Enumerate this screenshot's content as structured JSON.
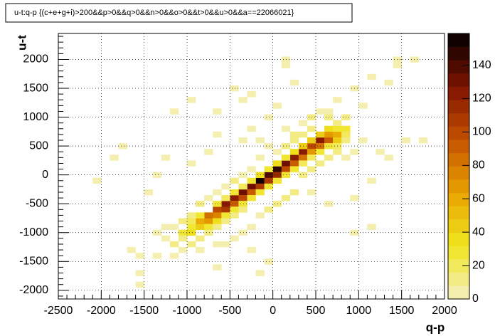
{
  "chart_data": {
    "type": "heatmap",
    "title": "u-t:q-p {(c+e+g+i)>200&&p>0&&q>0&&n>0&&o>0&&t>0&&u>0&&a==22066021}",
    "xlabel": "q-p",
    "ylabel": "u-t",
    "xlim": [
      -2500,
      2000
    ],
    "ylim": [
      -2150,
      2450
    ],
    "zlim": [
      0,
      159
    ],
    "bin_width": [
      100,
      100
    ],
    "xticks": [
      -2500,
      -2000,
      -1500,
      -1000,
      -500,
      0,
      500,
      1000,
      1500,
      2000
    ],
    "yticks": [
      -2000,
      -1500,
      -1000,
      -500,
      0,
      500,
      1000,
      1500,
      2000
    ],
    "zticks": [
      0,
      20,
      40,
      60,
      80,
      100,
      120,
      140
    ],
    "grid": true,
    "palette": [
      "#f5f0c2",
      "#f0e61e",
      "#e8a200",
      "#c45200",
      "#7e1200",
      "#000000"
    ],
    "x": [
      -950,
      -850,
      -850,
      -750,
      -750,
      -650,
      -650,
      -550,
      -550,
      -450,
      -450,
      -350,
      -350,
      -250,
      -250,
      -150,
      -150,
      -50,
      -50,
      50,
      50,
      150,
      150,
      250,
      250,
      350,
      350,
      450,
      450,
      550,
      550,
      650,
      650,
      750,
      750,
      850,
      -1050,
      -950,
      -950,
      -850,
      -750,
      -650,
      -650,
      -550,
      -550,
      -450,
      -450,
      -350,
      -350,
      -250,
      -250,
      -150,
      -150,
      -50,
      -50,
      50,
      50,
      150,
      150,
      250,
      250,
      350,
      350,
      450,
      450,
      550,
      550,
      650,
      650,
      750,
      750,
      850,
      850,
      -1250,
      -1150,
      -1050,
      -1150,
      -1050,
      -950,
      -1250,
      -1350,
      -850,
      -750,
      -650,
      -550,
      -450,
      -350,
      -1050,
      -950,
      -1150,
      -850,
      -650,
      -850,
      -750,
      -650,
      -550,
      -450,
      -350,
      -250,
      -1550,
      -1550,
      -1350,
      -1650,
      -1450,
      -1350,
      -2050,
      -1850,
      -1750,
      -1250,
      -950,
      -750,
      -650,
      -350,
      -250,
      -50,
      50,
      150,
      -50,
      50,
      250,
      350,
      450,
      550,
      650,
      750,
      850,
      650,
      750,
      450,
      350,
      250,
      150,
      -150,
      -150,
      350,
      450,
      550,
      650,
      750,
      850,
      950,
      1050,
      1250,
      1550,
      1150,
      950,
      650,
      450,
      250,
      150,
      50,
      -50,
      -150,
      -250,
      -350,
      -450,
      -550,
      -250,
      -50,
      -150,
      1150,
      950,
      -650,
      -1550,
      250,
      150,
      150,
      1150,
      1350,
      1450,
      1450,
      1650,
      -250,
      -450,
      -950,
      -1150,
      -650,
      -350,
      950,
      1050,
      1750,
      1350
    ],
    "y": [
      -900,
      -900,
      -800,
      -800,
      -700,
      -600,
      -700,
      -600,
      -500,
      -400,
      -500,
      -300,
      -400,
      -200,
      -300,
      -100,
      -200,
      0,
      -100,
      100,
      0,
      200,
      100,
      300,
      200,
      400,
      300,
      500,
      400,
      600,
      500,
      600,
      700,
      700,
      600,
      800,
      -1000,
      -1000,
      -800,
      -700,
      -900,
      -800,
      -500,
      -700,
      -400,
      -600,
      -300,
      -500,
      -200,
      -400,
      -100,
      -300,
      0,
      -200,
      100,
      -100,
      200,
      0,
      300,
      100,
      400,
      200,
      500,
      300,
      600,
      400,
      700,
      500,
      800,
      500,
      800,
      700,
      600,
      -1100,
      -1200,
      -1100,
      -900,
      -800,
      -700,
      -900,
      -1000,
      -1100,
      -1000,
      -900,
      -800,
      -700,
      -600,
      -1300,
      -1200,
      -1400,
      -1300,
      -1200,
      -500,
      -400,
      -300,
      -200,
      -100,
      0,
      100,
      -1900,
      -1700,
      -1400,
      -1300,
      -300,
      0,
      -100,
      300,
      500,
      300,
      200,
      400,
      700,
      600,
      800,
      1000,
      1200,
      800,
      500,
      400,
      700,
      900,
      1000,
      1100,
      1100,
      1300,
      1000,
      1000,
      900,
      800,
      700,
      600,
      500,
      300,
      600,
      0,
      100,
      200,
      300,
      400,
      300,
      400,
      600,
      400,
      600,
      -100,
      -400,
      -500,
      -300,
      -300,
      -400,
      -500,
      -600,
      -700,
      -900,
      -1000,
      -1100,
      -1200,
      -1300,
      -1500,
      -1700,
      -900,
      -1000,
      -1600,
      -1400,
      1600,
      1900,
      2000,
      1700,
      1600,
      2000,
      1900,
      2000,
      1400,
      1500,
      1300,
      1100,
      1100,
      1300,
      1500,
      1200,
      600,
      300
    ],
    "values": [
      30,
      45,
      60,
      70,
      85,
      100,
      75,
      110,
      120,
      125,
      95,
      130,
      100,
      135,
      90,
      158,
      110,
      140,
      105,
      150,
      115,
      135,
      100,
      125,
      90,
      120,
      85,
      100,
      70,
      125,
      80,
      95,
      70,
      60,
      45,
      30,
      25,
      35,
      20,
      30,
      30,
      35,
      25,
      30,
      20,
      30,
      25,
      25,
      20,
      30,
      25,
      30,
      35,
      25,
      30,
      25,
      35,
      25,
      30,
      25,
      35,
      20,
      40,
      20,
      45,
      25,
      40,
      30,
      35,
      20,
      25,
      20,
      15,
      5,
      8,
      10,
      6,
      8,
      10,
      4,
      3,
      12,
      15,
      12,
      10,
      12,
      10,
      5,
      8,
      4,
      6,
      3,
      8,
      5,
      6,
      5,
      8,
      6,
      4,
      3,
      3,
      3,
      2,
      3,
      2,
      2,
      2,
      3,
      4,
      3,
      3,
      2,
      3,
      2,
      3,
      2,
      5,
      4,
      6,
      8,
      6,
      8,
      6,
      5,
      3,
      10,
      12,
      15,
      10,
      12,
      10,
      8,
      6,
      4,
      10,
      8,
      12,
      10,
      8,
      5,
      4,
      3,
      2,
      3,
      3,
      2,
      3,
      6,
      8,
      10,
      8,
      10,
      6,
      4,
      5,
      6,
      4,
      2,
      2,
      3,
      2,
      2,
      2,
      2,
      3,
      2,
      3,
      3,
      2,
      2,
      2,
      2,
      2,
      3,
      2,
      2,
      3,
      2,
      3,
      3,
      2,
      2
    ]
  }
}
